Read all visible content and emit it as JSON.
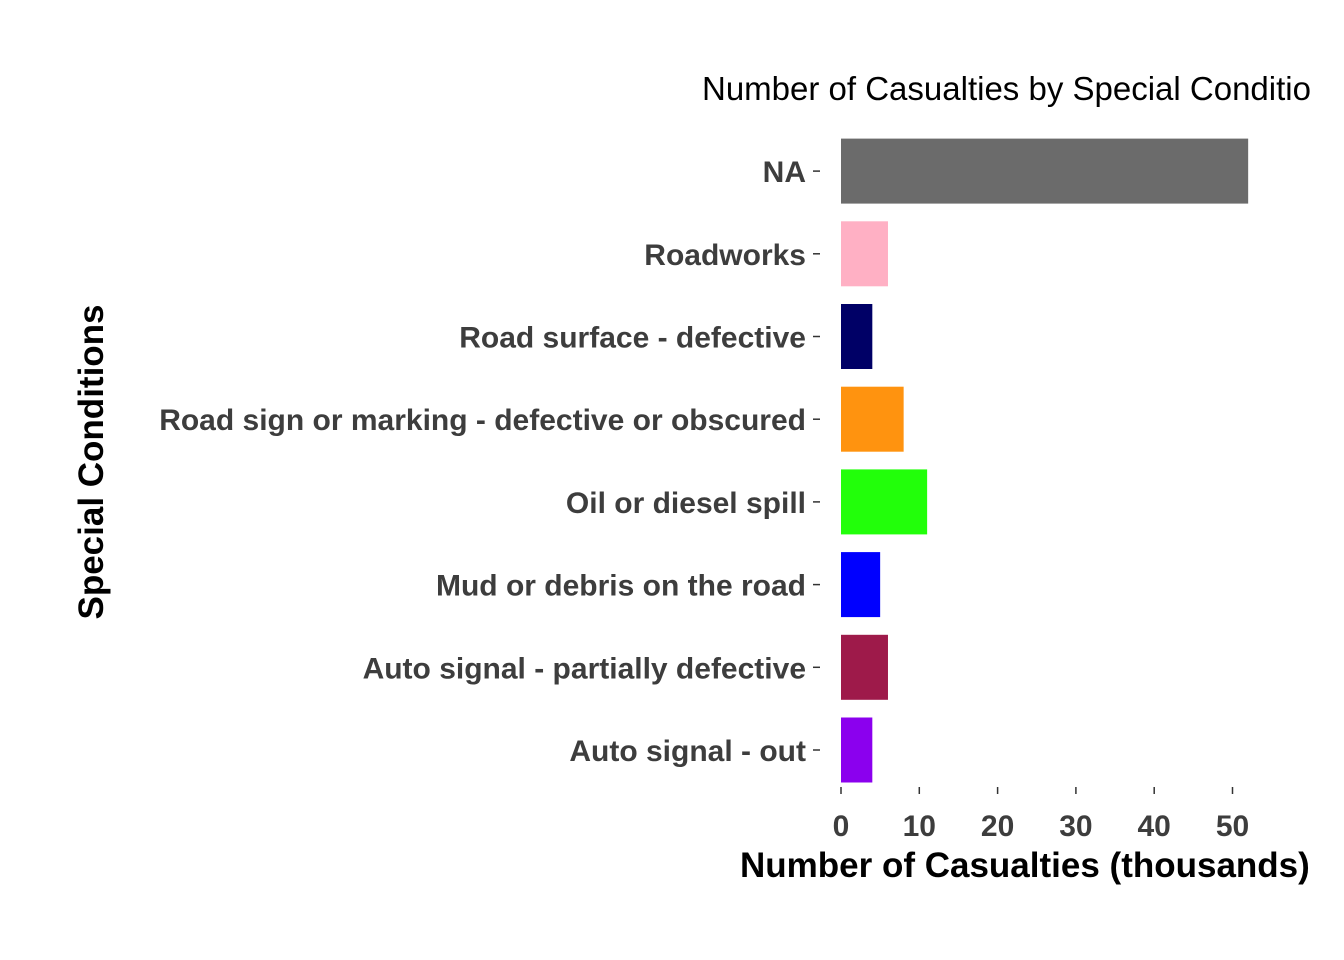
{
  "chart_data": {
    "type": "bar",
    "orientation": "horizontal",
    "title": "Number of Casualties by Special Conditio",
    "xlabel": "Number of Casualties (thousands)",
    "ylabel": "Special Conditions",
    "categories": [
      "Auto signal - out",
      "Auto signal - partially defective",
      "Mud or debris on the road",
      "Oil or diesel spill",
      "Road sign or marking - defective or obscured",
      "Road surface - defective",
      "Roadworks",
      "NA"
    ],
    "values": [
      4,
      6,
      5,
      11,
      8,
      4,
      6,
      52
    ],
    "colors": [
      "#8B00EE",
      "#9E1A4A",
      "#0000FF",
      "#22FF0A",
      "#FF930F",
      "#000066",
      "#FFB0C4",
      "#6B6B6B"
    ],
    "x_ticks": [
      0,
      10,
      20,
      30,
      40,
      50
    ],
    "xlim": [
      0,
      55
    ],
    "grid": false,
    "legend": "none"
  }
}
